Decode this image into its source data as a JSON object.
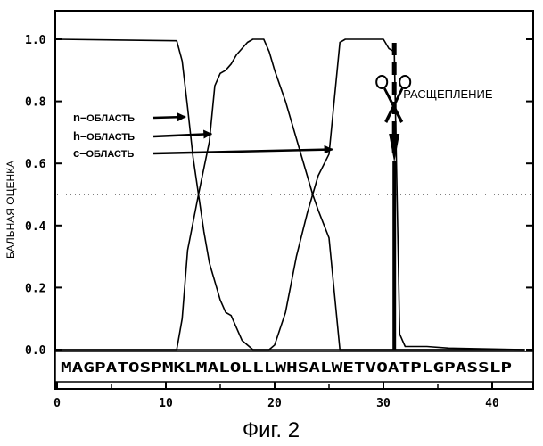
{
  "chart_data": {
    "type": "line",
    "title": "",
    "xlabel": "",
    "ylabel": "БАЛЬНАЯ ОЦЕНКА",
    "xlim": [
      0,
      43
    ],
    "ylim": [
      -0.12,
      1.07
    ],
    "x_ticks": [
      "0",
      "10",
      "20",
      "30",
      "40"
    ],
    "y_ticks": [
      "0.0",
      "0.2",
      "0.4",
      "0.6",
      "0.8",
      "1.0"
    ],
    "threshold": 0.5,
    "sequence": "MAGPATOSPMKLMALOLLLWHSALWETVOATPLGPASSLP",
    "series": [
      {
        "name": "n-ОБЛАСТЬ",
        "points": [
          [
            0,
            1
          ],
          [
            11,
            0.995
          ],
          [
            11.5,
            0.93
          ],
          [
            12,
            0.78
          ],
          [
            12.5,
            0.62
          ],
          [
            13,
            0.5
          ],
          [
            13.5,
            0.38
          ],
          [
            14,
            0.28
          ],
          [
            15,
            0.16
          ],
          [
            15.5,
            0.12
          ],
          [
            16,
            0.11
          ],
          [
            17,
            0.03
          ],
          [
            18,
            0
          ],
          [
            20,
            0
          ],
          [
            43,
            0
          ]
        ]
      },
      {
        "name": "h-ОБЛАСТЬ",
        "points": [
          [
            0,
            0
          ],
          [
            11,
            0
          ],
          [
            11.5,
            0.1
          ],
          [
            12,
            0.32
          ],
          [
            13,
            0.5
          ],
          [
            14,
            0.67
          ],
          [
            14.5,
            0.85
          ],
          [
            15,
            0.89
          ],
          [
            15.5,
            0.9
          ],
          [
            16,
            0.92
          ],
          [
            16.5,
            0.95
          ],
          [
            17.5,
            0.99
          ],
          [
            18,
            1
          ],
          [
            19,
            1
          ],
          [
            19.5,
            0.96
          ],
          [
            20,
            0.9
          ],
          [
            21,
            0.8
          ],
          [
            22,
            0.68
          ],
          [
            23,
            0.56
          ],
          [
            23.5,
            0.5
          ],
          [
            24,
            0.45
          ],
          [
            25,
            0.36
          ],
          [
            26,
            0
          ],
          [
            43,
            0
          ]
        ]
      },
      {
        "name": "c-ОБЛАСТЬ",
        "points": [
          [
            0,
            0
          ],
          [
            19.5,
            0
          ],
          [
            20,
            0.015
          ],
          [
            21,
            0.12
          ],
          [
            22,
            0.3
          ],
          [
            23,
            0.44
          ],
          [
            23.5,
            0.5
          ],
          [
            24,
            0.56
          ],
          [
            25,
            0.63
          ],
          [
            26,
            0.99
          ],
          [
            26.5,
            1
          ],
          [
            30,
            1
          ],
          [
            30.5,
            0.97
          ],
          [
            31,
            0.96
          ],
          [
            31.5,
            0.05
          ],
          [
            32,
            0.01
          ],
          [
            34,
            0.01
          ],
          [
            36,
            0.005
          ],
          [
            43,
            0
          ]
        ]
      }
    ],
    "annotations": [
      {
        "text": "n-ОБЛАСТЬ",
        "target": [
          11.8,
          0.75
        ]
      },
      {
        "text": "h-ОБЛАСТЬ",
        "target": [
          14.2,
          0.695
        ]
      },
      {
        "text": "c-ОБЛАСТЬ",
        "target": [
          25.3,
          0.645
        ]
      }
    ],
    "cleavage": {
      "label": "РАСЩЕПЛЕНИЕ",
      "x": 31
    }
  },
  "caption": "Фиг. 2"
}
